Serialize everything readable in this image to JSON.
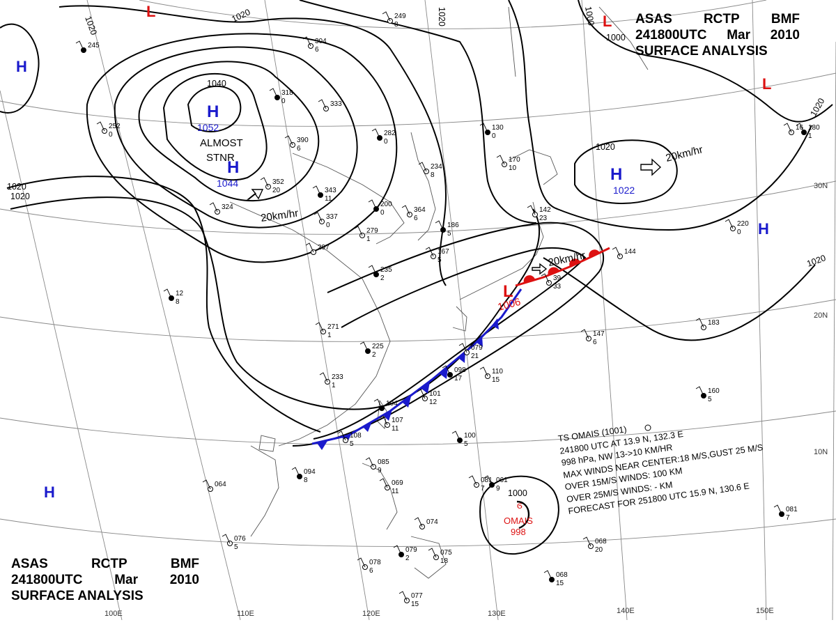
{
  "header": {
    "line1": [
      "ASAS",
      "RCTP",
      "BMF"
    ],
    "line2": [
      "241800UTC",
      "Mar",
      "2010"
    ],
    "line3": "SURFACE  ANALYSIS"
  },
  "pressure_centers": [
    {
      "type": "H",
      "value": "1052",
      "color": "#1a1acc"
    },
    {
      "type": "H",
      "value": "1044",
      "color": "#1a1acc"
    },
    {
      "type": "H",
      "value": "1022",
      "color": "#1a1acc"
    },
    {
      "type": "H",
      "value": "",
      "color": "#1a1acc"
    },
    {
      "type": "H",
      "value": "",
      "color": "#1a1acc"
    },
    {
      "type": "H",
      "value": "",
      "color": "#1a1acc"
    },
    {
      "type": "L",
      "value": "1006",
      "color": "#dd1111"
    },
    {
      "type": "L",
      "value": "",
      "color": "#dd1111"
    },
    {
      "type": "L",
      "value": "",
      "color": "#dd1111"
    },
    {
      "type": "L",
      "value": "",
      "color": "#dd1111"
    }
  ],
  "motion_labels": [
    "20km/hr",
    "20km/hr",
    "20km/hr"
  ],
  "annotations": {
    "almost_stnr": [
      "ALMOST",
      "STNR"
    ]
  },
  "isobar_labels": [
    "1020",
    "1020",
    "1020",
    "1020",
    "1020",
    "1020",
    "1020",
    "1020",
    "1040",
    "1000",
    "1000"
  ],
  "typhoon": {
    "name": "OMAIS",
    "pressure": "998",
    "center_isobar": "1000",
    "bulletin": [
      "TS  OMAIS  (1001)",
      "241800  UTC  AT 13.9 N, 132.3 E",
      "998 hPa, NW  13->10 KM/HR",
      "MAX WINDS NEAR CENTER:18 M/S,GUST 25 M/S",
      "OVER 15M/S WINDS:  100  KM",
      "OVER 25M/S WINDS:  -  KM",
      "FORECAST FOR 251800 UTC 15.9 N, 130.6 E"
    ]
  },
  "graticule_labels": {
    "longitude": [
      "100E",
      "110E",
      "120E",
      "130E",
      "140E",
      "150E"
    ],
    "latitude": [
      "30N",
      "20N",
      "10N"
    ]
  },
  "colors": {
    "high_pressure": "#1a1acc",
    "low_pressure": "#dd1111",
    "cold_front": "#1a1acc",
    "warm_front": "#dd1111",
    "isobar": "#000000",
    "coastline": "#555555",
    "graticule": "#888888"
  },
  "station_plots": [
    {
      "top": "245",
      "bottom": ""
    },
    {
      "top": "249",
      "bottom": "8"
    },
    {
      "top": "304",
      "bottom": "6"
    },
    {
      "top": "318",
      "bottom": "0"
    },
    {
      "top": "333",
      "bottom": ""
    },
    {
      "top": "252",
      "bottom": "0"
    },
    {
      "top": "282",
      "bottom": "0"
    },
    {
      "top": "390",
      "bottom": "6"
    },
    {
      "top": "352",
      "bottom": "20"
    },
    {
      "top": "343",
      "bottom": "11"
    },
    {
      "top": "324",
      "bottom": ""
    },
    {
      "top": "337",
      "bottom": "0"
    },
    {
      "top": "200",
      "bottom": "0"
    },
    {
      "top": "364",
      "bottom": "6"
    },
    {
      "top": "234",
      "bottom": "8"
    },
    {
      "top": "130",
      "bottom": "0"
    },
    {
      "top": "170",
      "bottom": "10"
    },
    {
      "top": "279",
      "bottom": "1"
    },
    {
      "top": "186",
      "bottom": "5"
    },
    {
      "top": "167",
      "bottom": "5"
    },
    {
      "top": "297",
      "bottom": ""
    },
    {
      "top": "235",
      "bottom": "2"
    },
    {
      "top": "142",
      "bottom": "23"
    },
    {
      "top": "144",
      "bottom": ""
    },
    {
      "top": "180",
      "bottom": "1"
    },
    {
      "top": "220",
      "bottom": "0"
    },
    {
      "top": "271",
      "bottom": "1"
    },
    {
      "top": "225",
      "bottom": "2"
    },
    {
      "top": "233",
      "bottom": "1"
    },
    {
      "top": "079",
      "bottom": "21"
    },
    {
      "top": "098",
      "bottom": "17"
    },
    {
      "top": "110",
      "bottom": "15"
    },
    {
      "top": "101",
      "bottom": "12"
    },
    {
      "top": "104",
      "bottom": ""
    },
    {
      "top": "107",
      "bottom": "11"
    },
    {
      "top": "108",
      "bottom": "5"
    },
    {
      "top": "100",
      "bottom": "5"
    },
    {
      "top": "147",
      "bottom": "6"
    },
    {
      "top": "183",
      "bottom": ""
    },
    {
      "top": "160",
      "bottom": "5"
    },
    {
      "top": "085",
      "bottom": "9"
    },
    {
      "top": "069",
      "bottom": "11"
    },
    {
      "top": "094",
      "bottom": "8"
    },
    {
      "top": "064",
      "bottom": ""
    },
    {
      "top": "076",
      "bottom": "5"
    },
    {
      "top": "081",
      "bottom": "7"
    },
    {
      "top": "074",
      "bottom": ""
    },
    {
      "top": "075",
      "bottom": "18"
    },
    {
      "top": "079",
      "bottom": "2"
    },
    {
      "top": "078",
      "bottom": "6"
    },
    {
      "top": "077",
      "bottom": "15"
    },
    {
      "top": "068",
      "bottom": "15"
    },
    {
      "top": "068",
      "bottom": "20"
    },
    {
      "top": "081",
      "bottom": "7"
    },
    {
      "top": "061",
      "bottom": "9"
    },
    {
      "top": "39",
      "bottom": "33"
    },
    {
      "top": "16",
      "bottom": ""
    },
    {
      "top": "12",
      "bottom": "8"
    }
  ]
}
